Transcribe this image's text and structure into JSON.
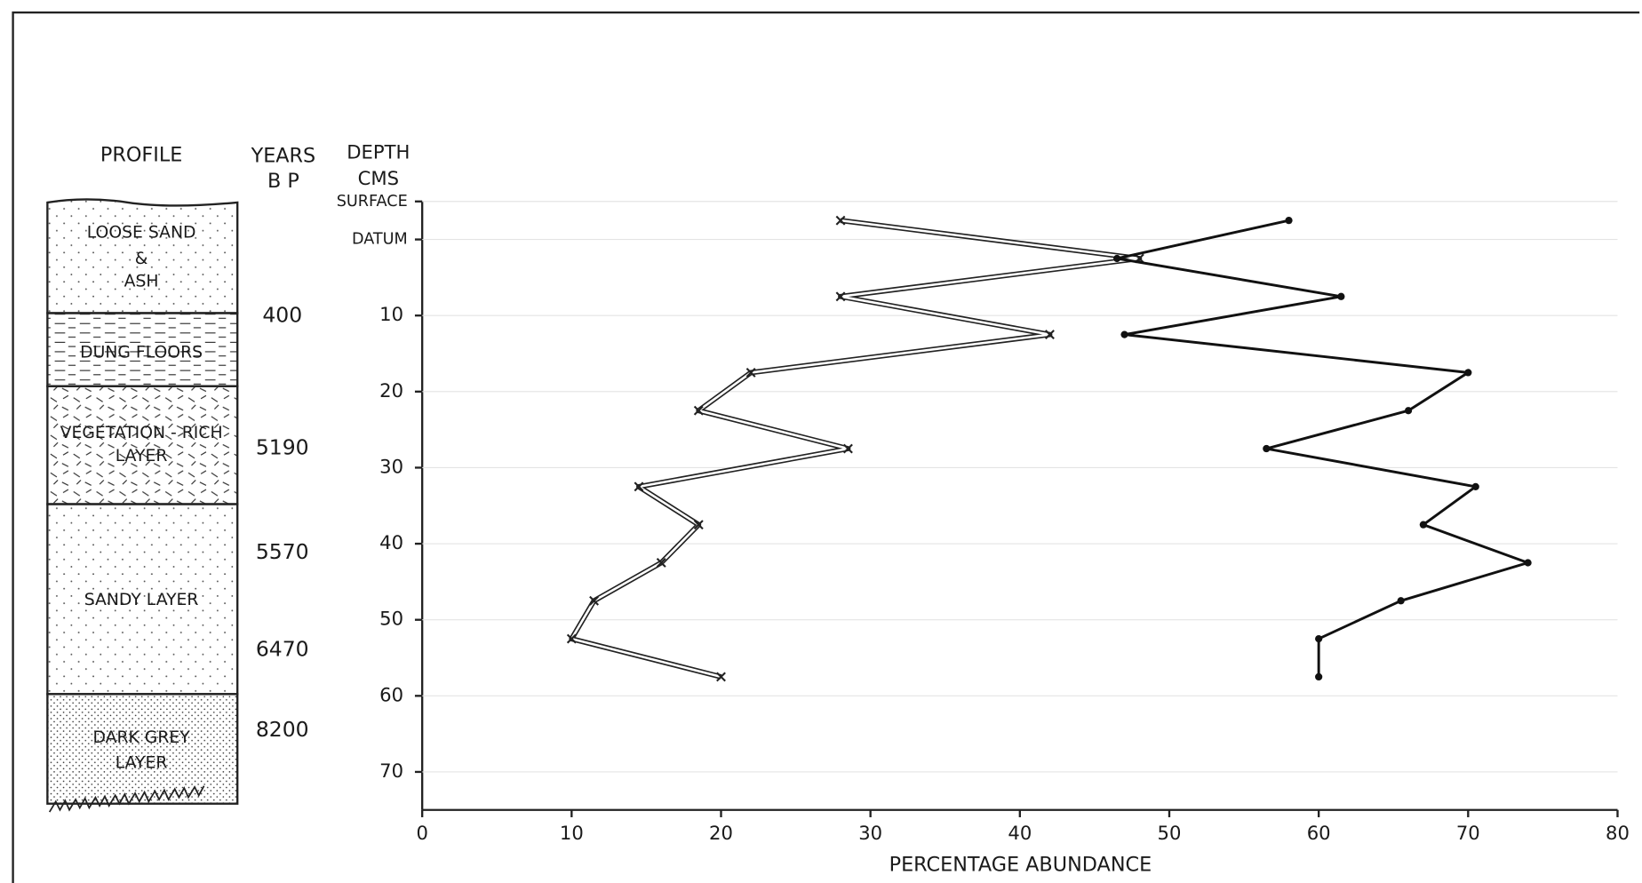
{
  "chart_data": {
    "type": "line",
    "x_label": "PERCENTAGE ABUNDANCE",
    "y_label": [
      "DEPTH",
      "CMS"
    ],
    "depth": [
      -2.5,
      2.5,
      7.5,
      12.5,
      17.5,
      22.5,
      27.5,
      32.5,
      37.5,
      42.5,
      47.5,
      52.5,
      57.5
    ],
    "series": [
      {
        "marker": "x",
        "color": "#222222",
        "values": [
          28,
          48,
          28,
          42,
          22,
          18.5,
          28.5,
          14.5,
          18.5,
          16,
          11.5,
          10,
          20
        ]
      },
      {
        "marker": "dot",
        "color": "#111111",
        "values": [
          58,
          46.5,
          61.5,
          47,
          70,
          66,
          56.5,
          70.5,
          67,
          74,
          65.5,
          60,
          60
        ]
      }
    ],
    "xlim": [
      0,
      80
    ],
    "xticks": [
      0,
      10,
      20,
      30,
      40,
      50,
      60,
      70,
      80
    ],
    "ylim": [
      -5,
      75
    ],
    "yticks": [
      {
        "value": -5,
        "label": "SURFACE"
      },
      {
        "value": 0,
        "label": "DATUM"
      },
      10,
      20,
      30,
      40,
      50,
      60,
      70
    ],
    "y_inverted": true,
    "grid": true
  },
  "profile": {
    "title": "PROFILE",
    "layers": [
      [
        "LOOSE SAND",
        "&",
        "ASH"
      ],
      [
        "DUNG FLOORS"
      ],
      [
        "VEGETATION - RICH",
        "LAYER"
      ],
      [
        "SANDY LAYER"
      ],
      [
        "DARK GREY",
        "LAYER"
      ]
    ]
  },
  "years": {
    "title": [
      "YEARS",
      "B P"
    ],
    "labels": [
      "400",
      "5190",
      "5570",
      "6470",
      "8200"
    ]
  }
}
